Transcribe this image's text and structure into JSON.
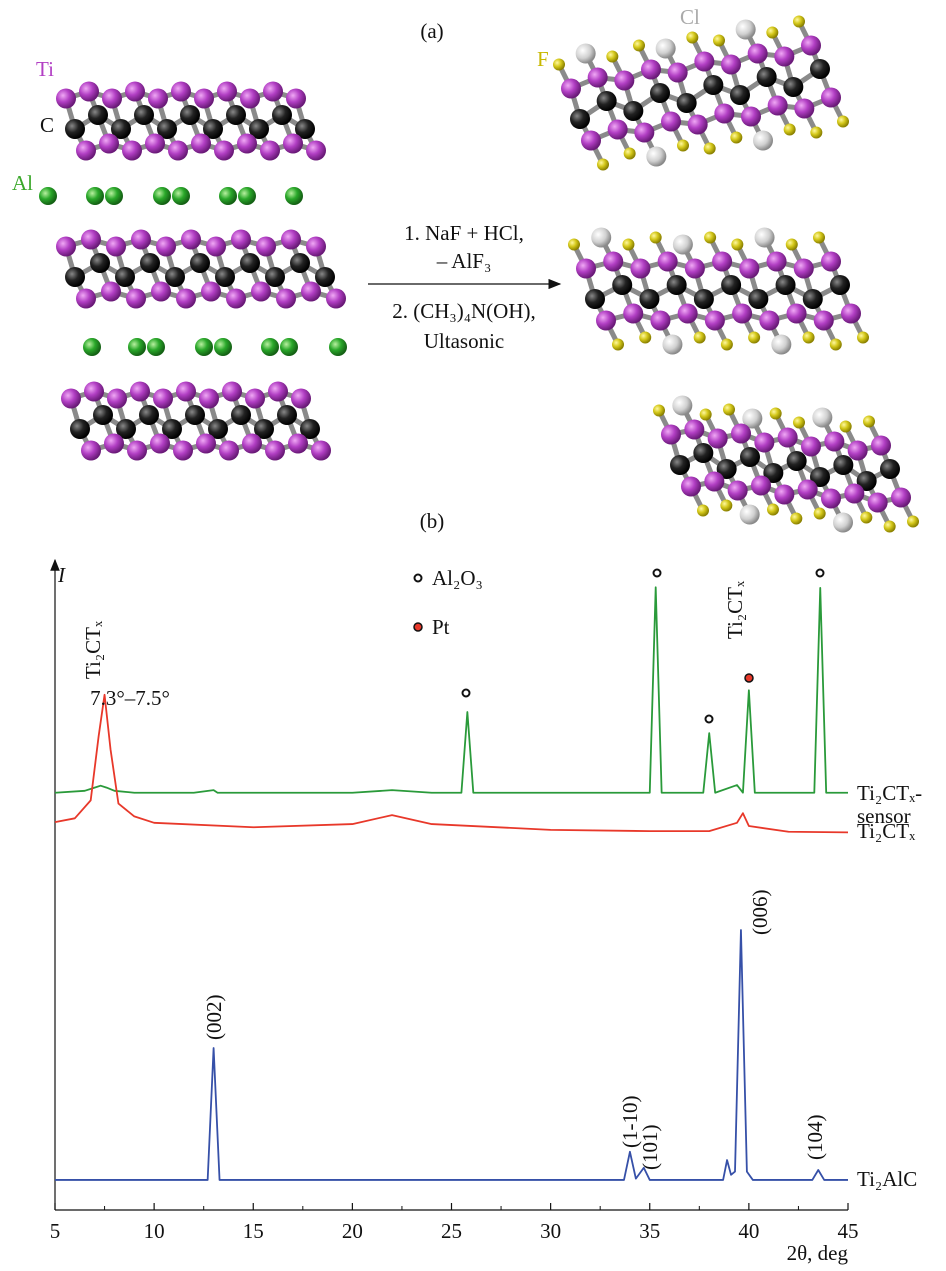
{
  "diagram": {
    "title": "(a)",
    "labels": {
      "ti": "Ti",
      "c": "C",
      "al": "Al",
      "f": "F",
      "cl": "Cl"
    },
    "reaction": [
      "1. NaF + HCl,",
      "– AlF₃",
      "2. (CH₃)₄N(OH),",
      "Ultasonic"
    ]
  },
  "chart_data": {
    "type": "line",
    "title": "(b)",
    "y_label": "I",
    "x_label": "2θ, deg",
    "xlim": [
      5,
      45
    ],
    "xticks": [
      5,
      10,
      15,
      20,
      25,
      30,
      35,
      40,
      45
    ],
    "ylim": [
      0,
      100
    ],
    "legend": [
      "Al₂O₃",
      "Pt"
    ],
    "annotations": [
      "Ti₂CTₓ",
      "7.3°–7.5°",
      "Ti₂CTₓ",
      "(002)",
      "(1-10)",
      "(101)",
      "(006)",
      "(104)"
    ],
    "series": [
      {
        "name": "Ti₂CTₓ-sensor",
        "color": "#2a9a3a",
        "x": [
          5,
          6.5,
          7,
          7.3,
          7.6,
          8,
          9,
          12,
          13,
          13.2,
          20,
          22,
          24,
          25.5,
          25.8,
          26.1,
          30,
          35,
          35.3,
          35.6,
          37.7,
          38,
          38.3,
          39.4,
          39.7,
          40,
          40.3,
          43.3,
          43.6,
          43.9,
          45
        ],
        "values": [
          65.2,
          65.5,
          66,
          66.3,
          66,
          65.5,
          65.2,
          65.2,
          65.6,
          65.2,
          65.2,
          65.6,
          65.2,
          65.2,
          77.8,
          65.2,
          65.2,
          65.2,
          97.3,
          65.2,
          65.2,
          74.5,
          65.2,
          66.4,
          65.2,
          81.2,
          65.2,
          65.2,
          97.2,
          65.2,
          65.2
        ]
      },
      {
        "name": "Ti₂CTₓ",
        "color": "#e8382a",
        "x": [
          5,
          6,
          6.8,
          7.2,
          7.5,
          7.8,
          8.2,
          9,
          10,
          15,
          20,
          22,
          24,
          30,
          35,
          38,
          39.4,
          39.7,
          40,
          42,
          45
        ],
        "values": [
          60.6,
          61.2,
          64,
          74,
          80.5,
          72,
          63.5,
          61.5,
          60.5,
          59.8,
          60.3,
          61.7,
          60.3,
          59.4,
          59.2,
          59.2,
          60.5,
          62,
          60,
          59.1,
          59
        ]
      },
      {
        "name": "Ti₂AlC",
        "color": "#3650a8",
        "x": [
          5,
          12.7,
          13,
          13.3,
          20,
          33.7,
          34,
          34.3,
          34.7,
          35,
          38.7,
          38.9,
          39.1,
          39.3,
          39.6,
          39.9,
          40.2,
          43.2,
          43.5,
          43.8,
          45
        ],
        "values": [
          4.7,
          4.7,
          25.3,
          4.7,
          4.7,
          4.7,
          9.1,
          4.9,
          6.6,
          4.7,
          4.7,
          7.8,
          5.5,
          6,
          43.75,
          6,
          4.7,
          4.7,
          6.25,
          4.7,
          4.7
        ]
      }
    ]
  }
}
